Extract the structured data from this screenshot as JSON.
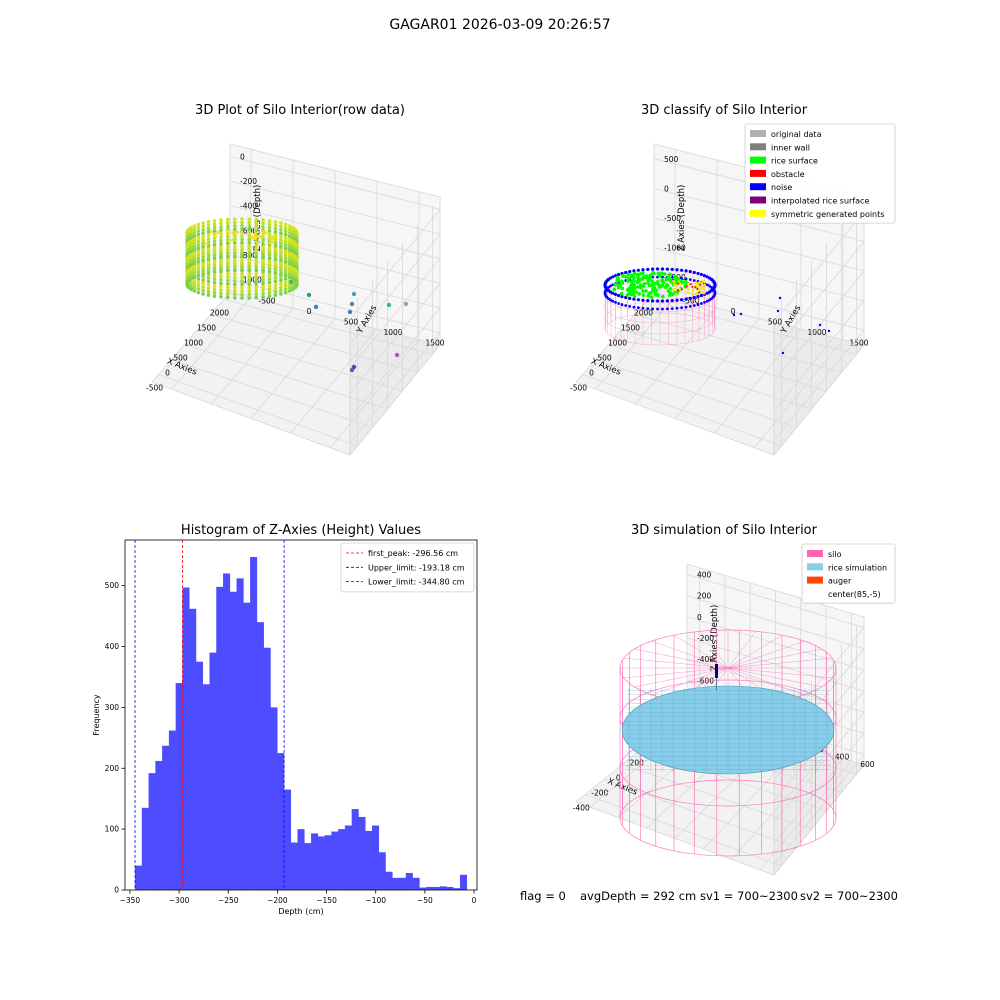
{
  "figure": {
    "suptitle": "GAGAR01 2026-03-09 20:26:57",
    "footer": {
      "flag": "flag = 0",
      "avg_depth": "avgDepth = 292 cm",
      "sv1": "sv1 = 700~2300",
      "sv2": "sv2 = 700~2300"
    }
  },
  "colors": {
    "hist_bar": "#4d4dff",
    "first_peak": "#ff0000",
    "limit": "#0000ff",
    "rice_surface": "#00ff00",
    "noise": "#0000ff",
    "silo": "#ff69b4",
    "rice_simulation": "#87ceeb",
    "auger": "#ff4500"
  },
  "chart_data": [
    {
      "type": "scatter",
      "title": "3D Plot of Silo Interior(row data)",
      "xlabel": "X Axies",
      "ylabel": "Y Axies",
      "zlabel": "Z Axies (Depth)",
      "xticks": [
        "-500",
        "0",
        "500",
        "1000",
        "1500",
        "2000"
      ],
      "yticks": [
        "-500",
        "0",
        "500",
        "1000",
        "1500"
      ],
      "zticks": [
        "0",
        "-200",
        "-400",
        "-600",
        "-800",
        "-1000"
      ]
    },
    {
      "type": "scatter",
      "title": "3D classify of Silo Interior",
      "xlabel": "X Axies",
      "ylabel": "Y Axies",
      "zlabel": "Z Axies (Depth)",
      "xticks": [
        "-500",
        "0",
        "500",
        "1000",
        "1500",
        "2000"
      ],
      "yticks": [
        "-500",
        "0",
        "500",
        "1000",
        "1500"
      ],
      "zticks": [
        "500",
        "0",
        "-500",
        "-1000",
        "-1500"
      ],
      "legend": [
        {
          "label": "original data",
          "color": "#b0b0b0"
        },
        {
          "label": "inner wall",
          "color": "#808080"
        },
        {
          "label": "rice surface",
          "color": "#00ff00"
        },
        {
          "label": "obstacle",
          "color": "#ff0000"
        },
        {
          "label": "noise",
          "color": "#0000ff"
        },
        {
          "label": "interpolated rice surface",
          "color": "#800080"
        },
        {
          "label": "symmetric generated points",
          "color": "#ffff00"
        }
      ],
      "legend_position": "top-right"
    },
    {
      "type": "bar",
      "title": "Histogram of Z-Axies (Height) Values",
      "xlabel": "Depth (cm)",
      "ylabel": "Frequency",
      "xlim": [
        -355,
        3
      ],
      "ylim": [
        0,
        575
      ],
      "xticks": [
        -350,
        -300,
        -250,
        -200,
        -150,
        -100,
        -50,
        0
      ],
      "yticks": [
        0,
        100,
        200,
        300,
        400,
        500
      ],
      "bin_start": -344.8,
      "bin_width": 6.885,
      "values": [
        40,
        135,
        192,
        212,
        237,
        262,
        340,
        497,
        462,
        375,
        338,
        390,
        498,
        520,
        490,
        512,
        472,
        547,
        440,
        398,
        300,
        225,
        165,
        78,
        100,
        77,
        93,
        88,
        90,
        96,
        100,
        106,
        133,
        120,
        97,
        106,
        62,
        30,
        20,
        20,
        28,
        20,
        4,
        5,
        5,
        6,
        5,
        3,
        25
      ],
      "lines": [
        {
          "label": "first_peak: -296.56 cm",
          "value": -296.56,
          "color": "#ff0000"
        },
        {
          "label": "Upper_limit: -193.18 cm",
          "value": -193.18,
          "color": "#0000ff"
        },
        {
          "label": "Lower_limit: -344.80 cm",
          "value": -344.8,
          "color": "#0000ff"
        }
      ],
      "legend_position": "top-right"
    },
    {
      "type": "scatter",
      "title": "3D simulation of Silo Interior",
      "xlabel": "X Axies",
      "ylabel": "Y Axies",
      "zlabel": "Z Axies (Depth)",
      "xticks": [
        "-400",
        "-200",
        "0",
        "200",
        "400",
        "600"
      ],
      "yticks": [
        "-600",
        "-400",
        "-200",
        "0",
        "200",
        "400",
        "600"
      ],
      "zticks": [
        "400",
        "200",
        "0",
        "-200",
        "-400",
        "-600",
        "-800"
      ],
      "legend": [
        {
          "label": "silo",
          "color": "#ff69b4"
        },
        {
          "label": "rice simulation",
          "color": "#87ceeb"
        },
        {
          "label": "auger",
          "color": "#ff4500"
        },
        {
          "label": "center(85,-5)",
          "color": ""
        }
      ],
      "legend_position": "top-right"
    }
  ]
}
